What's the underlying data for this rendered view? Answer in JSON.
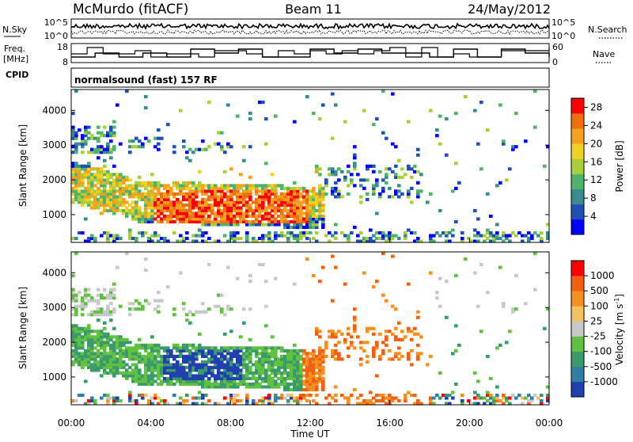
{
  "header": {
    "station": "McMurdo (fitACF)",
    "beam": "Beam 11",
    "date": "24/May/2012"
  },
  "summary_panels": {
    "nsky": {
      "left_label": "N.Sky",
      "ticks_left": [
        "10^5",
        "10^0"
      ],
      "right_label": "N.Search",
      "ticks_right": [
        "10^5",
        "10^0"
      ]
    },
    "freq": {
      "left_label_line1": "Freq.",
      "left_label_line2": "[MHz]",
      "ticks_left": [
        "18",
        "8"
      ],
      "right_label": "Nave",
      "ticks_right": [
        "60",
        "0"
      ]
    },
    "cpid": {
      "label": "CPID",
      "value": "normalsound (fast) 157 RF"
    }
  },
  "chart_data": [
    {
      "type": "heatmap",
      "name": "power",
      "ylabel": "Slant Range [km]",
      "xlabel": "",
      "y_ticks": [
        "4000",
        "3000",
        "2000",
        "1000"
      ],
      "y_tick_values": [
        4000,
        3000,
        2000,
        1000
      ],
      "ylim": [
        200,
        4600
      ],
      "xlim": [
        0,
        24
      ],
      "colorbar": {
        "label": "Power [dB]",
        "ticks": [
          "28",
          "24",
          "20",
          "16",
          "12",
          "8",
          "4"
        ],
        "tick_values": [
          28,
          24,
          20,
          16,
          12,
          8,
          4
        ],
        "range": [
          0,
          30
        ],
        "colors": [
          "#0000ff",
          "#1e4fb4",
          "#3a8c8c",
          "#4fb36a",
          "#a8cf3a",
          "#f0d020",
          "#f5a020",
          "#f07010",
          "#ff0000"
        ]
      }
    },
    {
      "type": "heatmap",
      "name": "velocity",
      "ylabel": "Slant Range [km]",
      "xlabel": "Time UT",
      "y_ticks": [
        "4000",
        "3000",
        "2000",
        "1000"
      ],
      "y_tick_values": [
        4000,
        3000,
        2000,
        1000
      ],
      "ylim": [
        200,
        4600
      ],
      "xlim": [
        0,
        24
      ],
      "x_ticks": [
        "00:00",
        "04:00",
        "08:00",
        "12:00",
        "16:00",
        "20:00",
        "00:00"
      ],
      "x_tick_values": [
        0,
        4,
        8,
        12,
        16,
        20,
        24
      ],
      "colorbar": {
        "label": "Velocity [m s^-1]",
        "ticks": [
          "1000",
          "500",
          "100",
          "25",
          "-25",
          "-100",
          "-500",
          "-1000"
        ],
        "colors": [
          "#2040b0",
          "#2f7fa8",
          "#3a9a6a",
          "#60c040",
          "#c8c8c8",
          "#f5c060",
          "#f59020",
          "#f06010",
          "#ff0000"
        ]
      }
    }
  ]
}
